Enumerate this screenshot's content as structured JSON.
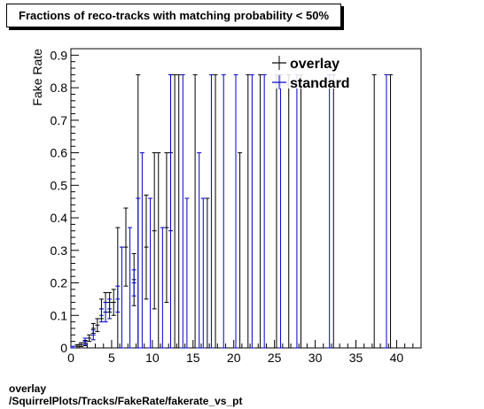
{
  "title": "Fractions of reco-tracks with matching probability < 50%",
  "footer": {
    "line1": "overlay",
    "line2": "/SquirrelPlots/Tracks/FakeRate/fakerate_vs_pt"
  },
  "chart_data": {
    "type": "scatter",
    "title": "Fractions of reco-tracks with matching probability < 50%",
    "xlabel": "",
    "ylabel": "Fake Rate",
    "xlim": [
      0,
      43
    ],
    "ylim": [
      0,
      0.92
    ],
    "xticks": [
      "0",
      "5",
      "10",
      "15",
      "20",
      "25",
      "30",
      "35",
      "40"
    ],
    "yticks": [
      "0",
      "0.1",
      "0.2",
      "0.3",
      "0.4",
      "0.5",
      "0.6",
      "0.7",
      "0.8",
      "0.9"
    ],
    "grid": false,
    "legend_position": "top-right",
    "series": [
      {
        "name": "overlay",
        "color": "#000000",
        "points": [
          {
            "x": 0.75,
            "y": 0.005,
            "err": 0.005
          },
          {
            "x": 1.25,
            "y": 0.01,
            "err": 0.006
          },
          {
            "x": 1.75,
            "y": 0.015,
            "err": 0.008
          },
          {
            "x": 2.25,
            "y": 0.03,
            "err": 0.01
          },
          {
            "x": 2.75,
            "y": 0.06,
            "err": 0.015
          },
          {
            "x": 3.25,
            "y": 0.07,
            "err": 0.02
          },
          {
            "x": 3.75,
            "y": 0.12,
            "err": 0.03
          },
          {
            "x": 4.25,
            "y": 0.14,
            "err": 0.03
          },
          {
            "x": 4.75,
            "y": 0.14,
            "err": 0.03
          },
          {
            "x": 5.25,
            "y": 0.14,
            "err": 0.04
          },
          {
            "x": 5.75,
            "y": 0.0,
            "err": 0.37
          },
          {
            "x": 6.75,
            "y": 0.31,
            "err": 0.12
          },
          {
            "x": 7.75,
            "y": 0.21,
            "err": 0.08
          },
          {
            "x": 8.25,
            "y": 0.0,
            "err": 0.84
          },
          {
            "x": 9.25,
            "y": 0.31,
            "err": 0.16
          },
          {
            "x": 10.25,
            "y": 0.36,
            "err": 0.24
          },
          {
            "x": 10.75,
            "y": 0.0,
            "err": 0.6
          },
          {
            "x": 11.75,
            "y": 0.37,
            "err": 0.23
          },
          {
            "x": 12.25,
            "y": 0.6,
            "err": 0.24
          },
          {
            "x": 12.75,
            "y": 0.0,
            "err": 0.84
          },
          {
            "x": 13.25,
            "y": 0.0,
            "err": 0.84
          },
          {
            "x": 15.25,
            "y": 0.0,
            "err": 0.84
          },
          {
            "x": 16.75,
            "y": 0.0,
            "err": 0.46
          },
          {
            "x": 17.75,
            "y": 0.0,
            "err": 0.84
          },
          {
            "x": 20.75,
            "y": 0.0,
            "err": 0.6
          },
          {
            "x": 21.75,
            "y": 0.0,
            "err": 0.84
          },
          {
            "x": 23.25,
            "y": 0.0,
            "err": 0.84
          },
          {
            "x": 25.25,
            "y": 0.0,
            "err": 0.84
          },
          {
            "x": 26.75,
            "y": 0.0,
            "err": 0.84
          },
          {
            "x": 28.25,
            "y": 0.0,
            "err": 0.84
          },
          {
            "x": 32.25,
            "y": 0.0,
            "err": 0.84
          },
          {
            "x": 37.25,
            "y": 0.0,
            "err": 0.84
          },
          {
            "x": 39.25,
            "y": 0.0,
            "err": 0.84
          }
        ]
      },
      {
        "name": "standard",
        "color": "#0000cc",
        "points": [
          {
            "x": 0.25,
            "y": 0.0,
            "err": 0.005
          },
          {
            "x": 1.75,
            "y": 0.02,
            "err": 0.01
          },
          {
            "x": 2.75,
            "y": 0.04,
            "err": 0.015
          },
          {
            "x": 3.75,
            "y": 0.1,
            "err": 0.02
          },
          {
            "x": 4.25,
            "y": 0.11,
            "err": 0.03
          },
          {
            "x": 4.75,
            "y": 0.12,
            "err": 0.03
          },
          {
            "x": 5.75,
            "y": 0.15,
            "err": 0.04
          },
          {
            "x": 6.25,
            "y": 0.0,
            "err": 0.31
          },
          {
            "x": 7.25,
            "y": 0.0,
            "err": 0.37
          },
          {
            "x": 7.75,
            "y": 0.2,
            "err": 0.04
          },
          {
            "x": 8.25,
            "y": 0.0,
            "err": 0.46
          },
          {
            "x": 8.75,
            "y": 0.0,
            "err": 0.6
          },
          {
            "x": 9.75,
            "y": 0.0,
            "err": 0.46
          },
          {
            "x": 11.25,
            "y": 0.0,
            "err": 0.37
          },
          {
            "x": 12.25,
            "y": 0.0,
            "err": 0.84
          },
          {
            "x": 13.75,
            "y": 0.0,
            "err": 0.84
          },
          {
            "x": 14.25,
            "y": 0.0,
            "err": 0.46
          },
          {
            "x": 15.75,
            "y": 0.0,
            "err": 0.6
          },
          {
            "x": 16.25,
            "y": 0.0,
            "err": 0.46
          },
          {
            "x": 17.25,
            "y": 0.0,
            "err": 0.84
          },
          {
            "x": 18.75,
            "y": 0.0,
            "err": 0.84
          },
          {
            "x": 20.25,
            "y": 0.0,
            "err": 0.84
          },
          {
            "x": 22.25,
            "y": 0.0,
            "err": 0.84
          },
          {
            "x": 23.75,
            "y": 0.0,
            "err": 0.84
          },
          {
            "x": 25.75,
            "y": 0.0,
            "err": 0.84
          },
          {
            "x": 27.75,
            "y": 0.0,
            "err": 0.84
          },
          {
            "x": 31.75,
            "y": 0.0,
            "err": 0.84
          },
          {
            "x": 38.75,
            "y": 0.0,
            "err": 0.84
          }
        ]
      }
    ]
  }
}
